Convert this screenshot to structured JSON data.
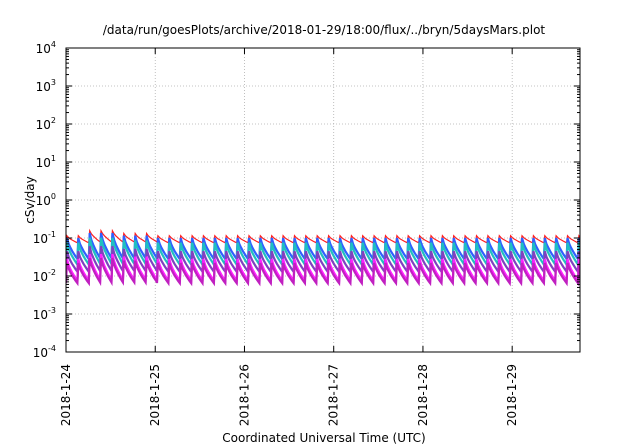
{
  "chart_data": {
    "type": "line",
    "title": "/data/run/goesPlots/archive/2018-01-29/18:00/flux/../bryn/5daysMars.plot",
    "xlabel": "Coordinated Universal Time (UTC)",
    "ylabel": "cSv/day",
    "y_scale": "log",
    "ylim": [
      0.0001,
      10000
    ],
    "y_ticks": [
      {
        "base": "10",
        "exp": "-4",
        "value": 0.0001
      },
      {
        "base": "10",
        "exp": "-3",
        "value": 0.001
      },
      {
        "base": "10",
        "exp": "-2",
        "value": 0.01
      },
      {
        "base": "10",
        "exp": "-1",
        "value": 0.1
      },
      {
        "base": "10",
        "exp": "0",
        "value": 1
      },
      {
        "base": "10",
        "exp": "1",
        "value": 10
      },
      {
        "base": "10",
        "exp": "2",
        "value": 100
      },
      {
        "base": "10",
        "exp": "3",
        "value": 1000
      },
      {
        "base": "10",
        "exp": "4",
        "value": 10000
      }
    ],
    "x_unit": "days since 2018-01-24",
    "xlim": [
      0,
      5.76
    ],
    "x_ticks": [
      {
        "label": "2018-1-24",
        "value": 0
      },
      {
        "label": "2018-1-25",
        "value": 1
      },
      {
        "label": "2018-1-26",
        "value": 2
      },
      {
        "label": "2018-1-27",
        "value": 3
      },
      {
        "label": "2018-1-28",
        "value": 4
      },
      {
        "label": "2018-1-29",
        "value": 5
      }
    ],
    "grid": true,
    "legend": "none",
    "period_days": 0.1275,
    "series": [
      {
        "color": "#ff2020",
        "peak": 0.115,
        "trough": 0.075,
        "outlier_peak": 0.12,
        "outlier_trough": 0.11
      },
      {
        "color": "#3060ff",
        "peak": 0.1,
        "trough": 0.028
      },
      {
        "color": "#20c0c0",
        "peak": 0.075,
        "trough": 0.02
      },
      {
        "color": "#8040c0",
        "peak": 0.045,
        "trough": 0.013
      },
      {
        "color": "#ff20ff",
        "peak": 0.028,
        "trough": 0.0075
      },
      {
        "color": "#c020c0",
        "peak": 0.022,
        "trough": 0.0065
      }
    ]
  }
}
